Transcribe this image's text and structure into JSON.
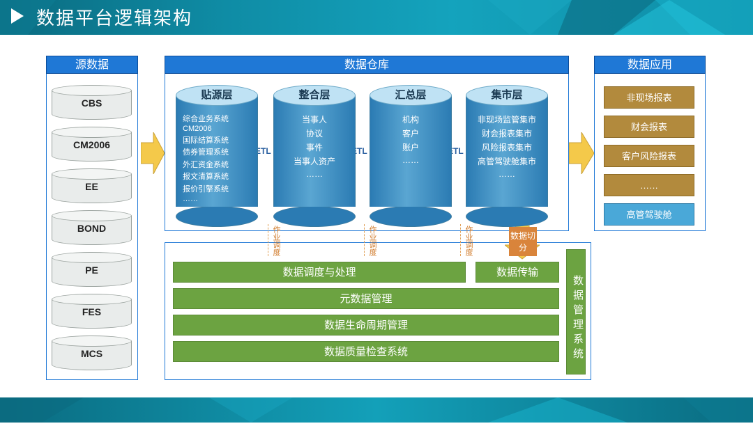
{
  "title": "数据平台逻辑架构",
  "colors": {
    "header_blue": "#1f78d6",
    "cyl_body": "#2b7bb3",
    "green": "#6ca341",
    "brown": "#b28a3d",
    "app_blue": "#4aa8d8",
    "arrow": "#f4c94a"
  },
  "columns": {
    "source": {
      "title": "源数据"
    },
    "warehouse": {
      "title": "数据仓库"
    },
    "application": {
      "title": "数据应用"
    }
  },
  "sources": [
    "CBS",
    "CM2006",
    "EE",
    "BOND",
    "PE",
    "FES",
    "MCS"
  ],
  "warehouse_layers": [
    {
      "name": "贴源层",
      "items": [
        "综合业务系统",
        "CM2006",
        "国际结算系统",
        "债券管理系统",
        "外汇资金系统",
        "报文清算系统",
        "报价引擎系统",
        "……"
      ],
      "small_text": true
    },
    {
      "name": "整合层",
      "items": [
        "当事人",
        "协议",
        "事件",
        "当事人资产",
        "……"
      ]
    },
    {
      "name": "汇总层",
      "items": [
        "机构",
        "客户",
        "账户",
        "……"
      ]
    },
    {
      "name": "集市层",
      "items": [
        "非现场监管集市",
        "财会报表集市",
        "风险报表集市",
        "高管驾驶舱集市",
        "……"
      ]
    }
  ],
  "etl_label": "ETL",
  "job_schedule_label": "作业调度",
  "data_slice_label": "数据切分",
  "applications": [
    {
      "label": "非现场报表",
      "style": "brown"
    },
    {
      "label": "财会报表",
      "style": "brown"
    },
    {
      "label": "客户风险报表",
      "style": "brown"
    },
    {
      "label": "……",
      "style": "brown"
    },
    {
      "label": "高管驾驶舱",
      "style": "blue"
    }
  ],
  "management": {
    "side_label": "数据管理系统",
    "row1a": "数据调度与处理",
    "row1b": "数据传输",
    "row2": "元数据管理",
    "row3": "数据生命周期管理",
    "row4": "数据质量检查系统"
  }
}
